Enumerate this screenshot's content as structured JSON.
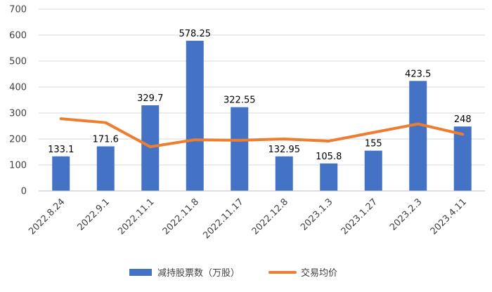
{
  "chart_data": {
    "type": "bar",
    "title": "",
    "xlabel": "",
    "ylabel": "",
    "ylim": [
      0,
      700
    ],
    "yticks": [
      0,
      100,
      200,
      300,
      400,
      500,
      600,
      700
    ],
    "grid": true,
    "legend_position": "bottom",
    "categories": [
      "2022.8.24",
      "2022.9.1",
      "2022.11.1",
      "2022.11.8",
      "2022.11.17",
      "2022.12.8",
      "2023.1.3",
      "2023.1.27",
      "2023.2.3",
      "2023.4.11"
    ],
    "series": [
      {
        "name": "减持股票数（万股）",
        "type": "bar",
        "color": "#4472C4",
        "values": [
          133.1,
          171.6,
          329.7,
          578.25,
          322.55,
          132.95,
          105.8,
          155,
          423.5,
          248
        ],
        "labels": [
          "133.1",
          "171.6",
          "329.7",
          "578.25",
          "322.55",
          "132.95",
          "105.8",
          "155",
          "423.5",
          "248"
        ]
      },
      {
        "name": "交易均价",
        "type": "line",
        "color": "#ED7D31",
        "values": [
          278,
          263,
          170,
          197,
          195,
          200,
          192,
          225,
          258,
          218
        ]
      }
    ]
  }
}
